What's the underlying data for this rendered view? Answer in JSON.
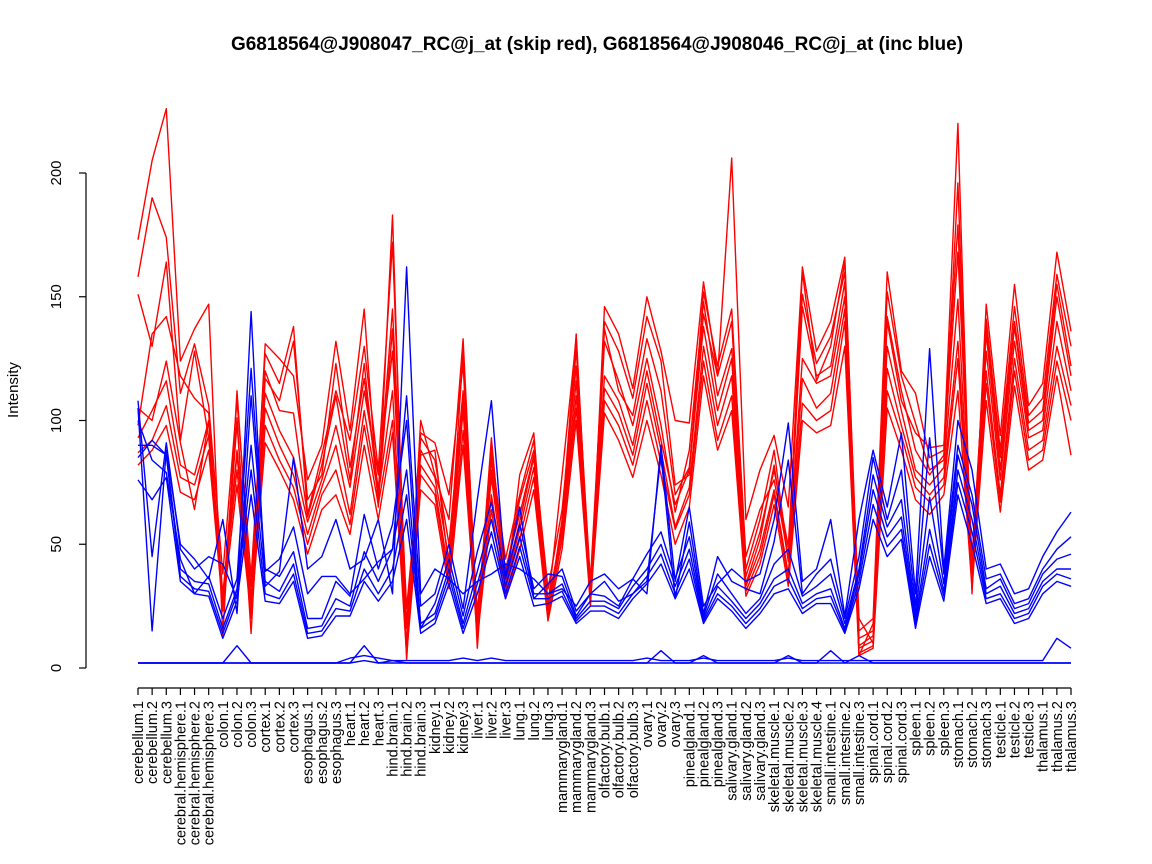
{
  "chart_data": {
    "type": "line",
    "title": "G6818564@J908047_RC@j_at (skip red), G6818564@J908046_RC@j_at (inc blue)",
    "xlabel": "",
    "ylabel": "Intensity",
    "ylim": [
      0,
      200
    ],
    "yticks": [
      0,
      50,
      100,
      150,
      200
    ],
    "grid": false,
    "legend": "none",
    "categories": [
      "cerebellum.1",
      "cerebellum.2",
      "cerebellum.3",
      "cerebral.hemisphere.1",
      "cerebral.hemisphere.2",
      "cerebral.hemisphere.3",
      "colon.1",
      "colon.2",
      "colon.3",
      "cortex.1",
      "cortex.2",
      "cortex.3",
      "esophagus.1",
      "esophagus.2",
      "esophagus.3",
      "heart.1",
      "heart.2",
      "heart.3",
      "hind.brain.1",
      "hind.brain.2",
      "hind.brain.3",
      "kidney.1",
      "kidney.2",
      "kidney.3",
      "liver.1",
      "liver.2",
      "liver.3",
      "lung.1",
      "lung.2",
      "lung.3",
      "mammarygland.1",
      "mammarygland.2",
      "mammarygland.3",
      "olfactory.bulb.1",
      "olfactory.bulb.2",
      "olfactory.bulb.3",
      "ovary.1",
      "ovary.2",
      "ovary.3",
      "pinealgland.1",
      "pinealgland.2",
      "pinealgland.3",
      "salivary.gland.1",
      "salivary.gland.2",
      "salivary.gland.3",
      "skeletal.muscle.1",
      "skeletal.muscle.2",
      "skeletal.muscle.3",
      "skeletal.muscle.4",
      "small.intestine.1",
      "small.intestine.2",
      "small.intestine.3",
      "spinal.cord.1",
      "spinal.cord.2",
      "spinal.cord.3",
      "spleen.1",
      "spleen.2",
      "spleen.3",
      "stomach.1",
      "stomach.2",
      "stomach.3",
      "testicle.1",
      "testicle.2",
      "testicle.3",
      "thalamus.1",
      "thalamus.2",
      "thalamus.3"
    ],
    "series": [
      {
        "color": "#ff0000",
        "values": [
          173,
          205,
          226,
          124,
          137,
          147,
          13,
          112,
          27,
          131,
          125,
          118,
          76,
          90,
          132,
          96,
          145,
          65,
          183,
          3,
          100,
          78,
          60,
          133,
          15,
          93,
          30,
          78,
          95,
          22,
          60,
          135,
          26,
          146,
          135,
          113,
          150,
          128,
          100,
          99,
          156,
          118,
          206,
          60,
          80,
          94,
          65,
          162,
          128,
          140,
          166,
          15,
          20,
          160,
          120,
          111,
          85,
          88,
          220,
          30,
          147,
          94,
          155,
          106,
          115,
          168,
          136
        ]
      },
      {
        "color": "#ff0000",
        "values": [
          158,
          190,
          174,
          111,
          131,
          106,
          38,
          108,
          37,
          127,
          115,
          138,
          62,
          86,
          112,
          92,
          130,
          80,
          172,
          16,
          95,
          91,
          70,
          123,
          8,
          87,
          44,
          70,
          92,
          25,
          78,
          133,
          30,
          140,
          128,
          109,
          142,
          124,
          74,
          78,
          152,
          122,
          145,
          45,
          64,
          76,
          45,
          160,
          116,
          130,
          164,
          20,
          10,
          152,
          118,
          99,
          80,
          84,
          196,
          35,
          141,
          88,
          146,
          102,
          109,
          159,
          130
        ]
      },
      {
        "color": "#ff0000",
        "values": [
          151,
          130,
          164,
          92,
          128,
          93,
          27,
          101,
          14,
          117,
          108,
          132,
          68,
          78,
          123,
          81,
          117,
          72,
          145,
          24,
          86,
          88,
          40,
          128,
          19,
          90,
          36,
          59,
          85,
          27,
          55,
          129,
          35,
          137,
          112,
          102,
          133,
          112,
          70,
          81,
          143,
          118,
          140,
          37,
          55,
          80,
          49,
          151,
          123,
          134,
          160,
          5,
          18,
          140,
          108,
          95,
          89,
          90,
          179,
          40,
          139,
          85,
          140,
          99,
          104,
          155,
          122
        ]
      },
      {
        "color": "#ff0000",
        "values": [
          98,
          135,
          142,
          118,
          109,
          103,
          23,
          99,
          20,
          120,
          104,
          103,
          61,
          82,
          110,
          76,
          123,
          68,
          137,
          8,
          93,
          84,
          50,
          112,
          18,
          84,
          38,
          68,
          88,
          32,
          64,
          122,
          25,
          132,
          116,
          98,
          125,
          98,
          63,
          88,
          148,
          110,
          129,
          40,
          60,
          88,
          44,
          146,
          118,
          122,
          156,
          9,
          13,
          142,
          112,
          88,
          78,
          86,
          168,
          44,
          135,
          80,
          138,
          96,
          100,
          150,
          118
        ]
      },
      {
        "color": "#ff0000",
        "values": [
          105,
          100,
          124,
          91,
          64,
          100,
          25,
          88,
          33,
          111,
          96,
          85,
          59,
          76,
          98,
          73,
          112,
          78,
          128,
          18,
          88,
          77,
          44,
          108,
          23,
          80,
          40,
          62,
          86,
          22,
          58,
          116,
          33,
          118,
          108,
          90,
          120,
          92,
          66,
          80,
          138,
          104,
          125,
          34,
          52,
          82,
          43,
          125,
          115,
          118,
          150,
          12,
          15,
          130,
          104,
          80,
          74,
          81,
          149,
          38,
          128,
          76,
          132,
          93,
          96,
          140,
          112
        ]
      },
      {
        "color": "#ff0000",
        "values": [
          93,
          104,
          116,
          82,
          78,
          100,
          30,
          86,
          26,
          105,
          90,
          78,
          54,
          73,
          90,
          62,
          104,
          70,
          112,
          10,
          82,
          73,
          38,
          104,
          17,
          77,
          34,
          56,
          81,
          24,
          55,
          110,
          27,
          113,
          103,
          86,
          115,
          88,
          57,
          73,
          130,
          98,
          118,
          33,
          48,
          72,
          38,
          117,
          105,
          111,
          145,
          8,
          11,
          121,
          98,
          77,
          70,
          77,
          132,
          41,
          120,
          70,
          125,
          88,
          92,
          130,
          106
        ]
      },
      {
        "color": "#ff0000",
        "values": [
          87,
          92,
          106,
          77,
          74,
          94,
          28,
          80,
          23,
          98,
          84,
          73,
          50,
          70,
          80,
          58,
          98,
          66,
          100,
          6,
          78,
          70,
          35,
          96,
          14,
          70,
          32,
          52,
          77,
          21,
          52,
          105,
          30,
          108,
          98,
          82,
          108,
          83,
          56,
          70,
          124,
          92,
          110,
          31,
          45,
          70,
          36,
          107,
          100,
          104,
          140,
          6,
          9,
          112,
          94,
          73,
          67,
          74,
          125,
          35,
          115,
          67,
          120,
          84,
          88,
          124,
          100
        ]
      },
      {
        "color": "#ff0000",
        "values": [
          82,
          88,
          98,
          71,
          68,
          88,
          24,
          74,
          21,
          91,
          80,
          68,
          46,
          64,
          70,
          54,
          90,
          60,
          95,
          5,
          72,
          66,
          32,
          90,
          12,
          64,
          28,
          48,
          72,
          19,
          48,
          100,
          26,
          103,
          92,
          77,
          100,
          78,
          50,
          65,
          118,
          88,
          104,
          29,
          42,
          66,
          33,
          100,
          95,
          98,
          130,
          5,
          8,
          105,
          88,
          68,
          62,
          70,
          112,
          32,
          108,
          63,
          114,
          80,
          84,
          118,
          86
        ]
      },
      {
        "color": "#0000ff",
        "values": [
          108,
          45,
          91,
          48,
          40,
          45,
          42,
          28,
          144,
          33,
          39,
          85,
          40,
          45,
          60,
          40,
          44,
          60,
          30,
          162,
          30,
          40,
          36,
          30,
          35,
          38,
          42,
          40,
          36,
          30,
          32,
          25,
          35,
          38,
          32,
          36,
          30,
          90,
          35,
          65,
          25,
          34,
          40,
          35,
          38,
          60,
          99,
          35,
          40,
          60,
          21,
          60,
          88,
          65,
          95,
          30,
          129,
          40,
          100,
          80,
          40,
          42,
          30,
          32,
          45,
          55,
          63
        ]
      },
      {
        "color": "#0000ff",
        "values": [
          105,
          15,
          88,
          50,
          44,
          36,
          60,
          22,
          110,
          39,
          44,
          57,
          30,
          37,
          37,
          30,
          36,
          43,
          48,
          110,
          25,
          30,
          50,
          24,
          68,
          108,
          37,
          65,
          28,
          34,
          40,
          23,
          30,
          35,
          27,
          30,
          35,
          86,
          28,
          59,
          22,
          45,
          35,
          32,
          30,
          51,
          84,
          30,
          38,
          44,
          20,
          45,
          85,
          60,
          80,
          25,
          93,
          38,
          90,
          70,
          36,
          38,
          26,
          28,
          40,
          48,
          53
        ]
      },
      {
        "color": "#0000ff",
        "values": [
          100,
          84,
          79,
          44,
          30,
          37,
          20,
          36,
          121,
          40,
          37,
          47,
          20,
          20,
          35,
          29,
          62,
          40,
          58,
          100,
          16,
          26,
          44,
          21,
          47,
          67,
          36,
          58,
          32,
          38,
          37,
          21,
          30,
          29,
          25,
          36,
          46,
          55,
          36,
          53,
          21,
          38,
          30,
          22,
          28,
          42,
          48,
          29,
          33,
          38,
          18,
          40,
          78,
          57,
          68,
          22,
          69,
          34,
          86,
          66,
          32,
          36,
          24,
          26,
          38,
          44,
          46
        ]
      },
      {
        "color": "#0000ff",
        "values": [
          90,
          90,
          86,
          40,
          35,
          34,
          16,
          32,
          90,
          35,
          31,
          42,
          16,
          17,
          28,
          25,
          47,
          35,
          48,
          80,
          18,
          22,
          40,
          18,
          39,
          60,
          33,
          53,
          30,
          30,
          34,
          20,
          27,
          27,
          24,
          33,
          40,
          50,
          33,
          48,
          20,
          33,
          27,
          20,
          26,
          36,
          40,
          26,
          30,
          32,
          16,
          38,
          72,
          53,
          61,
          20,
          56,
          31,
          80,
          60,
          30,
          33,
          22,
          24,
          35,
          40,
          40
        ]
      },
      {
        "color": "#0000ff",
        "values": [
          85,
          92,
          86,
          37,
          32,
          31,
          14,
          30,
          80,
          30,
          28,
          38,
          14,
          15,
          24,
          23,
          40,
          30,
          40,
          70,
          16,
          20,
          37,
          16,
          34,
          55,
          30,
          49,
          28,
          28,
          31,
          19,
          25,
          25,
          22,
          30,
          37,
          46,
          30,
          44,
          19,
          30,
          25,
          18,
          24,
          33,
          36,
          24,
          28,
          29,
          15,
          35,
          66,
          49,
          56,
          18,
          50,
          29,
          75,
          55,
          28,
          30,
          20,
          22,
          33,
          38,
          36
        ]
      },
      {
        "color": "#0000ff",
        "values": [
          76,
          68,
          77,
          35,
          30,
          29,
          12,
          27,
          70,
          27,
          26,
          35,
          12,
          13,
          21,
          21,
          35,
          27,
          35,
          60,
          14,
          18,
          34,
          14,
          30,
          50,
          28,
          45,
          25,
          26,
          29,
          18,
          23,
          23,
          20,
          28,
          34,
          42,
          28,
          40,
          18,
          28,
          23,
          16,
          22,
          30,
          32,
          22,
          26,
          26,
          14,
          32,
          60,
          45,
          52,
          16,
          45,
          27,
          70,
          50,
          26,
          28,
          18,
          20,
          30,
          35,
          33
        ]
      },
      {
        "color": "#0000ff",
        "values": [
          2,
          2,
          2,
          2,
          2,
          2,
          2,
          9,
          2,
          2,
          2,
          2,
          2,
          2,
          2,
          2,
          9,
          2,
          3,
          2,
          2,
          2,
          2,
          2,
          2,
          2,
          2,
          2,
          2,
          2,
          2,
          2,
          2,
          2,
          2,
          2,
          2,
          7,
          2,
          2,
          5,
          2,
          2,
          2,
          2,
          2,
          5,
          2,
          2,
          7,
          2,
          5,
          2,
          2,
          2,
          2,
          2,
          2,
          2,
          2,
          2,
          2,
          2,
          2,
          2,
          2,
          2
        ]
      },
      {
        "color": "#0000ff",
        "values": [
          2,
          2,
          2,
          2,
          2,
          2,
          2,
          2,
          2,
          2,
          2,
          2,
          2,
          2,
          2,
          4,
          5,
          4,
          3,
          3,
          3,
          3,
          3,
          4,
          3,
          4,
          3,
          3,
          3,
          3,
          3,
          3,
          3,
          3,
          3,
          3,
          4,
          3,
          3,
          3,
          4,
          3,
          3,
          3,
          3,
          3,
          4,
          3,
          3,
          3,
          3,
          3,
          3,
          3,
          3,
          3,
          3,
          3,
          3,
          3,
          3,
          3,
          3,
          3,
          3,
          12,
          8
        ]
      },
      {
        "color": "#0000ff",
        "values": [
          2,
          2,
          2,
          2,
          2,
          2,
          2,
          2,
          2,
          2,
          2,
          2,
          2,
          2,
          2,
          2,
          3,
          2,
          2,
          2,
          2,
          2,
          2,
          2,
          2,
          2,
          2,
          2,
          2,
          2,
          2,
          2,
          2,
          2,
          2,
          2,
          2,
          2,
          2,
          2,
          2,
          2,
          2,
          2,
          2,
          2,
          2,
          2,
          2,
          2,
          2,
          2,
          2,
          2,
          2,
          2,
          2,
          2,
          2,
          2,
          2,
          2,
          2,
          2,
          2,
          2,
          2
        ]
      }
    ]
  }
}
